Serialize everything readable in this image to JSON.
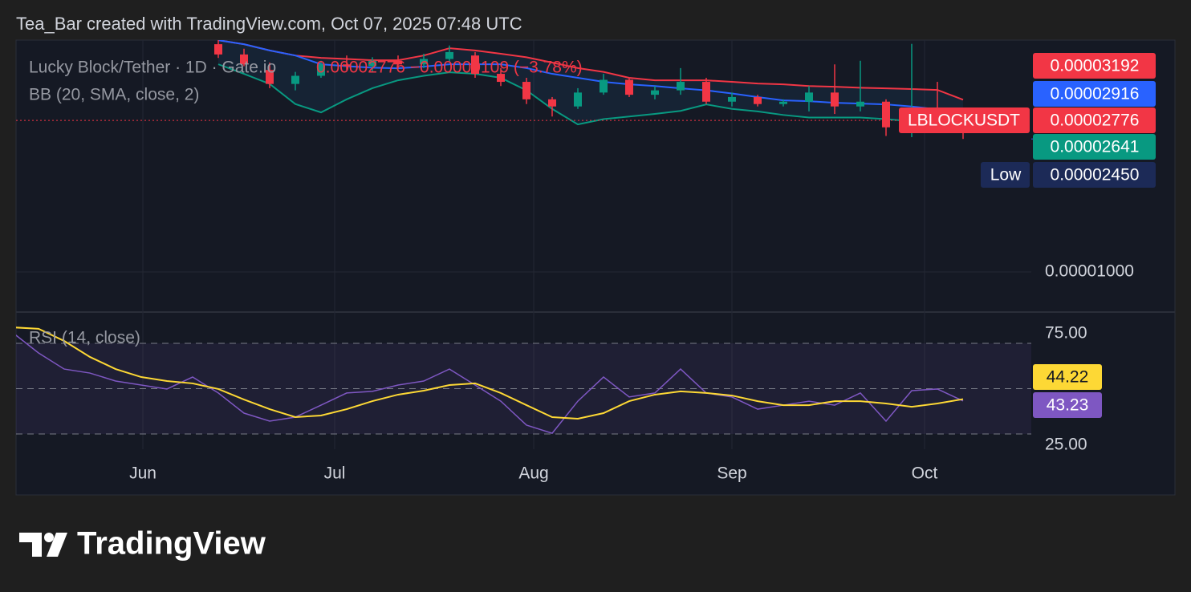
{
  "header": "Tea_Bar created with TradingView.com, Oct 07, 2025 07:48 UTC",
  "footer": "TradingView",
  "chart_data": {
    "type": "candlestick",
    "title": "Lucky Block/Tether · 1D · Gate.io",
    "quote": "0.00002776 −0.00000109 (−3.78%)",
    "symbol": "LBLOCKUSDT",
    "indicator": "BB (20, SMA, close, 2)",
    "log_scale": true,
    "grid": true,
    "ylim": [
      7.67e-06,
      4.77e-05
    ],
    "yticks": [
      {
        "value": 1e-05,
        "label": "0.00001000"
      }
    ],
    "xticks": [
      "Jun",
      "Jul",
      "Aug",
      "Sep",
      "Oct"
    ],
    "up_color": "#089981",
    "down_color": "#f23645",
    "open": [
      4.64e-05,
      4.33e-05,
      3.9e-05,
      3.55e-05,
      3.75e-05,
      4.05e-05,
      4e-05,
      4.15e-05,
      4.05e-05,
      4.2e-05,
      4.3e-05,
      3.8e-05,
      3.6e-05,
      3.2e-05,
      3.05e-05,
      3.35e-05,
      3.65e-05,
      3.3e-05,
      3.4e-05,
      3.6e-05,
      3.15e-05,
      3.25e-05,
      3.1e-05,
      3.15e-05,
      3.35e-05,
      3.05e-05,
      3.15e-05,
      2.65e-05,
      2.95e-05,
      2.9e-05
    ],
    "high": [
      4.77e-05,
      4.5e-05,
      4.1e-05,
      3.85e-05,
      4.15e-05,
      4.3e-05,
      4.25e-05,
      4.3e-05,
      4.35e-05,
      4.6e-05,
      4.4e-05,
      3.95e-05,
      3.7e-05,
      3.25e-05,
      3.45e-05,
      3.8e-05,
      3.7e-05,
      3.5e-05,
      3.95e-05,
      3.7e-05,
      3.35e-05,
      3.3e-05,
      3.2e-05,
      3.5e-05,
      4.05e-05,
      4.15e-05,
      3.2e-05,
      4.65e-05,
      3.6e-05,
      3e-05
    ],
    "low": [
      4.23e-05,
      4e-05,
      3.45e-05,
      3.4e-05,
      3.7e-05,
      3.9e-05,
      3.85e-05,
      3.95e-05,
      3.95e-05,
      4.1e-05,
      3.7e-05,
      3.5e-05,
      3.1e-05,
      2.85e-05,
      3e-05,
      3.3e-05,
      3.25e-05,
      3.2e-05,
      3.3e-05,
      3.1e-05,
      3.05e-05,
      3.05e-05,
      3.05e-05,
      2.95e-05,
      2.9e-05,
      2.95e-05,
      2.5e-05,
      2.48e-05,
      2.8e-05,
      2.45e-05
    ],
    "close": [
      4.33e-05,
      4.05e-05,
      3.55e-05,
      3.75e-05,
      4.05e-05,
      4e-05,
      4.15e-05,
      4.05e-05,
      4.2e-05,
      4.4e-05,
      3.8e-05,
      3.6e-05,
      3.2e-05,
      3.05e-05,
      3.35e-05,
      3.65e-05,
      3.3e-05,
      3.4e-05,
      3.6e-05,
      3.15e-05,
      3.25e-05,
      3.1e-05,
      3.15e-05,
      3.35e-05,
      3.05e-05,
      3.15e-05,
      2.65e-05,
      2.95e-05,
      2.9e-05,
      2.776e-05
    ],
    "bands": {
      "upper": {
        "color": "#f23645",
        "values": [
          4.767e-05,
          4.64e-05,
          4.45e-05,
          4.3e-05,
          4.232e-05,
          4.2e-05,
          4.164e-05,
          4.164e-05,
          4.3e-05,
          4.516e-05,
          4.45e-05,
          4.35e-05,
          4.25e-05,
          4.1e-05,
          3.95e-05,
          3.85e-05,
          3.7e-05,
          3.638e-05,
          3.638e-05,
          3.638e-05,
          3.6e-05,
          3.56e-05,
          3.541e-05,
          3.5e-05,
          3.483e-05,
          3.46e-05,
          3.446e-05,
          3.43e-05,
          3.41e-05,
          3.192e-05
        ]
      },
      "middle": {
        "color": "#2962ff",
        "values": [
          4.767e-05,
          4.64e-05,
          4.45e-05,
          4.3e-05,
          4.053e-05,
          4e-05,
          3.96e-05,
          3.945e-05,
          3.99e-05,
          4.053e-05,
          4.053e-05,
          4.053e-05,
          3.95e-05,
          3.8e-05,
          3.7e-05,
          3.6e-05,
          3.54e-05,
          3.5e-05,
          3.446e-05,
          3.4e-05,
          3.33e-05,
          3.25e-05,
          3.178e-05,
          3.16e-05,
          3.127e-05,
          3.11e-05,
          3.093e-05,
          3.05e-05,
          2.99e-05,
          2.916e-05
        ]
      },
      "lower": {
        "color": "#089981",
        "values": [
          4.053e-05,
          3.8e-05,
          3.55e-05,
          3.1e-05,
          2.93e-05,
          3.2e-05,
          3.45e-05,
          3.638e-05,
          3.75e-05,
          3.84e-05,
          3.8e-05,
          3.7e-05,
          3.4e-05,
          3e-05,
          2.702e-05,
          2.8e-05,
          2.85e-05,
          2.9e-05,
          2.96e-05,
          3.093e-05,
          3e-05,
          2.95e-05,
          2.88e-05,
          2.83e-05,
          2.83e-05,
          2.83e-05,
          2.8e-05,
          2.76e-05,
          2.7e-05,
          2.641e-05
        ]
      }
    },
    "low_marker": {
      "name": "Low",
      "value": 2.45e-05,
      "label": "0.00002450"
    },
    "rsi": {
      "type": "line",
      "title": "RSI (14, close)",
      "ylim": [
        16.6,
        91.8
      ],
      "yticks": [
        {
          "value": 75,
          "label": "75.00"
        },
        {
          "value": 25,
          "label": "25.00"
        }
      ],
      "levels": [
        75,
        50,
        25
      ],
      "series": [
        {
          "color": "#7e57c2",
          "values": [
            80.8,
            69.7,
            60.8,
            58.6,
            54.2,
            52.0,
            49.8,
            56.4,
            47.6,
            36.5,
            32.1,
            34.3,
            40.9,
            47.6,
            48.5,
            52.0,
            54.2,
            60.8,
            52.0,
            43.1,
            29.9,
            25.4,
            43.1,
            56.4,
            45.4,
            47.6,
            60.8,
            47.6,
            45.4,
            38.7,
            40.9,
            43.1,
            40.9,
            47.6,
            32.1,
            48.9,
            49.8,
            43.23
          ]
        },
        {
          "color": "#fdd835",
          "values": [
            83.8,
            83.0,
            76.3,
            67.5,
            60.8,
            56.4,
            54.2,
            52.9,
            49.8,
            44.0,
            38.7,
            34.3,
            35.2,
            38.7,
            43.1,
            46.7,
            48.9,
            52.0,
            52.9,
            47.6,
            40.9,
            34.3,
            33.4,
            36.5,
            43.1,
            46.7,
            48.5,
            47.6,
            46.2,
            43.1,
            40.9,
            40.9,
            43.1,
            43.1,
            41.8,
            40.0,
            41.8,
            44.22
          ]
        }
      ]
    }
  }
}
